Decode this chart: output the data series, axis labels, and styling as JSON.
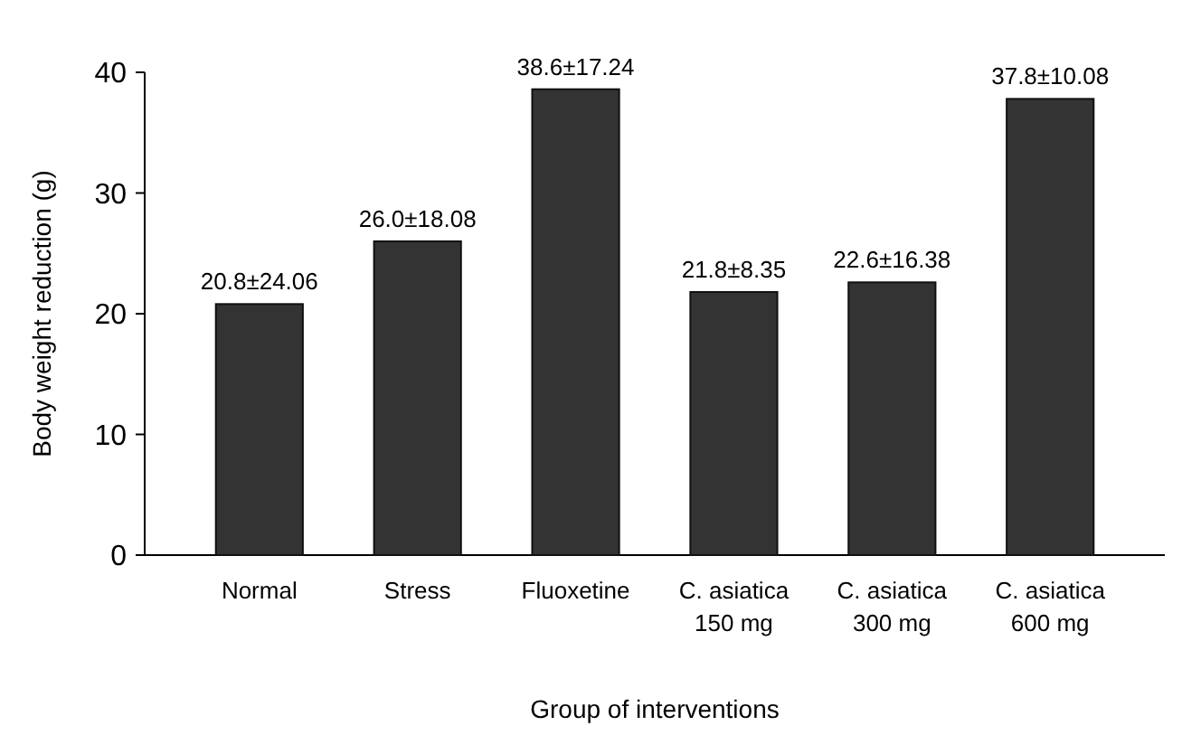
{
  "chart_data": {
    "type": "bar",
    "xlabel": "Group of interventions",
    "ylabel": "Body weight reduction (g)",
    "categories": [
      "Normal",
      "Stress",
      "Fluoxetine",
      "C. asiatica 150 mg",
      "C. asiatica 300 mg",
      "C. asiatica 600 mg"
    ],
    "values": [
      20.8,
      26.0,
      38.6,
      21.8,
      22.6,
      37.8
    ],
    "value_labels": [
      "20.8±24.06",
      "26.0±18.08",
      "38.6±17.24",
      "21.8±8.35",
      "22.6±16.38",
      "37.8±10.08"
    ],
    "color": "#333333",
    "ylim": [
      0,
      40
    ],
    "yticks": [
      0,
      10,
      20,
      30,
      40
    ],
    "grid": false
  }
}
